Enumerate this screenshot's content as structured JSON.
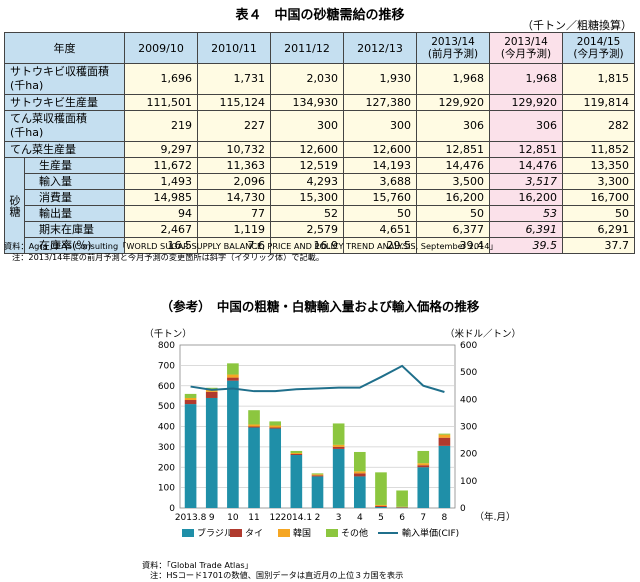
{
  "table": {
    "title": "表４　中国の砂糖需給の推移",
    "unit": "（千トン／粗糖換算）",
    "header_label": "年度",
    "columns": [
      "2009/10",
      "2010/11",
      "2011/12",
      "2012/13",
      "2013/14\n(前月予測)",
      "2013/14\n(今月予測)",
      "2014/15\n(今月予測)"
    ],
    "side_label": "砂糖",
    "rows": [
      {
        "label": "サトウキビ収穫面積\n(千ha)",
        "values": [
          "1,696",
          "1,731",
          "2,030",
          "1,930",
          "1,968",
          "1,968",
          "1,815"
        ],
        "tall": true
      },
      {
        "label": "サトウキビ生産量",
        "values": [
          "111,501",
          "115,124",
          "134,930",
          "127,380",
          "129,920",
          "129,920",
          "119,814"
        ]
      },
      {
        "label": "てん菜収穫面積\n(千ha)",
        "values": [
          "219",
          "227",
          "300",
          "300",
          "306",
          "306",
          "282"
        ],
        "tall": true
      },
      {
        "label": "てん菜生産量",
        "values": [
          "9,297",
          "10,732",
          "12,600",
          "12,600",
          "12,851",
          "12,851",
          "11,852"
        ]
      },
      {
        "label": "生産量",
        "values": [
          "11,672",
          "11,363",
          "12,519",
          "14,193",
          "14,476",
          "14,476",
          "13,350"
        ],
        "sugar": true
      },
      {
        "label": "輸入量",
        "values": [
          "1,493",
          "2,096",
          "4,293",
          "3,688",
          "3,500",
          "3,517",
          "3,300"
        ],
        "sugar": true,
        "italic": true
      },
      {
        "label": "消費量",
        "values": [
          "14,985",
          "14,730",
          "15,300",
          "15,760",
          "16,200",
          "16,200",
          "16,700"
        ],
        "sugar": true
      },
      {
        "label": "輸出量",
        "values": [
          "94",
          "77",
          "52",
          "50",
          "50",
          "53",
          "50"
        ],
        "sugar": true,
        "italic": true
      },
      {
        "label": "期末在庫量",
        "values": [
          "2,467",
          "1,119",
          "2,579",
          "4,651",
          "6,377",
          "6,391",
          "6,291"
        ],
        "sugar": true,
        "italic": true
      },
      {
        "label": "在庫率(％)",
        "values": [
          "16.5",
          "7.6",
          "16.9",
          "29.5",
          "39.4",
          "39.5",
          "37.7"
        ],
        "sugar": true,
        "italic": true
      }
    ],
    "source": "資料：Agra CEAS Consulting「WORLD SUGAR SUPPLY BALANCE, PRICE AND POLICY TREND ANALYSIS, September 2014」",
    "note": "注：2013/14年度の前月予測と今月予測の変更箇所は斜字（イタリック体）で記載。"
  },
  "chart_data": {
    "type": "bar",
    "title": "（参考）　中国の粗糖・白糖輸入量および輸入価格の推移",
    "ylabel_left": "（千トン）",
    "ylabel_right": "（米ドル／トン）",
    "xlabel": "（年.月）",
    "ylim_left": [
      0,
      800
    ],
    "ylim_right": [
      0,
      600
    ],
    "yticks_left": [
      "0",
      "100",
      "200",
      "300",
      "400",
      "500",
      "600",
      "700",
      "800"
    ],
    "yticks_right": [
      "0",
      "100",
      "200",
      "300",
      "400",
      "500",
      "600"
    ],
    "categories": [
      "2013.8",
      "9",
      "10",
      "11",
      "12",
      "2014.1",
      "2",
      "3",
      "4",
      "5",
      "6",
      "7",
      "8"
    ],
    "grid": true,
    "legend_position": "bottom",
    "stacked": true,
    "series": [
      {
        "name": "ブラジル",
        "color": "#1f8fa8",
        "values": [
          510,
          540,
          625,
          395,
          390,
          260,
          155,
          290,
          155,
          5,
          2,
          200,
          305
        ]
      },
      {
        "name": "タイ",
        "color": "#b03a2e",
        "values": [
          20,
          30,
          15,
          5,
          5,
          5,
          5,
          10,
          15,
          5,
          2,
          10,
          40
        ]
      },
      {
        "name": "韓国",
        "color": "#f5a623",
        "values": [
          10,
          15,
          15,
          10,
          10,
          5,
          5,
          10,
          10,
          5,
          2,
          10,
          15
        ]
      },
      {
        "name": "その他",
        "color": "#8cc63f",
        "values": [
          20,
          5,
          55,
          70,
          20,
          10,
          5,
          105,
          95,
          160,
          80,
          60,
          5
        ]
      }
    ],
    "line_series": {
      "name": "輸入単価(CIF)",
      "color": "#1f6f8b",
      "axis": "right",
      "values": [
        447,
        435,
        440,
        430,
        430,
        437,
        440,
        443,
        443,
        482,
        523,
        450,
        427
      ]
    },
    "source": "資料：「Global Trade Atlas」",
    "note": "注：HSコード1701の数値、国別データは直近月の上位３カ国を表示"
  }
}
